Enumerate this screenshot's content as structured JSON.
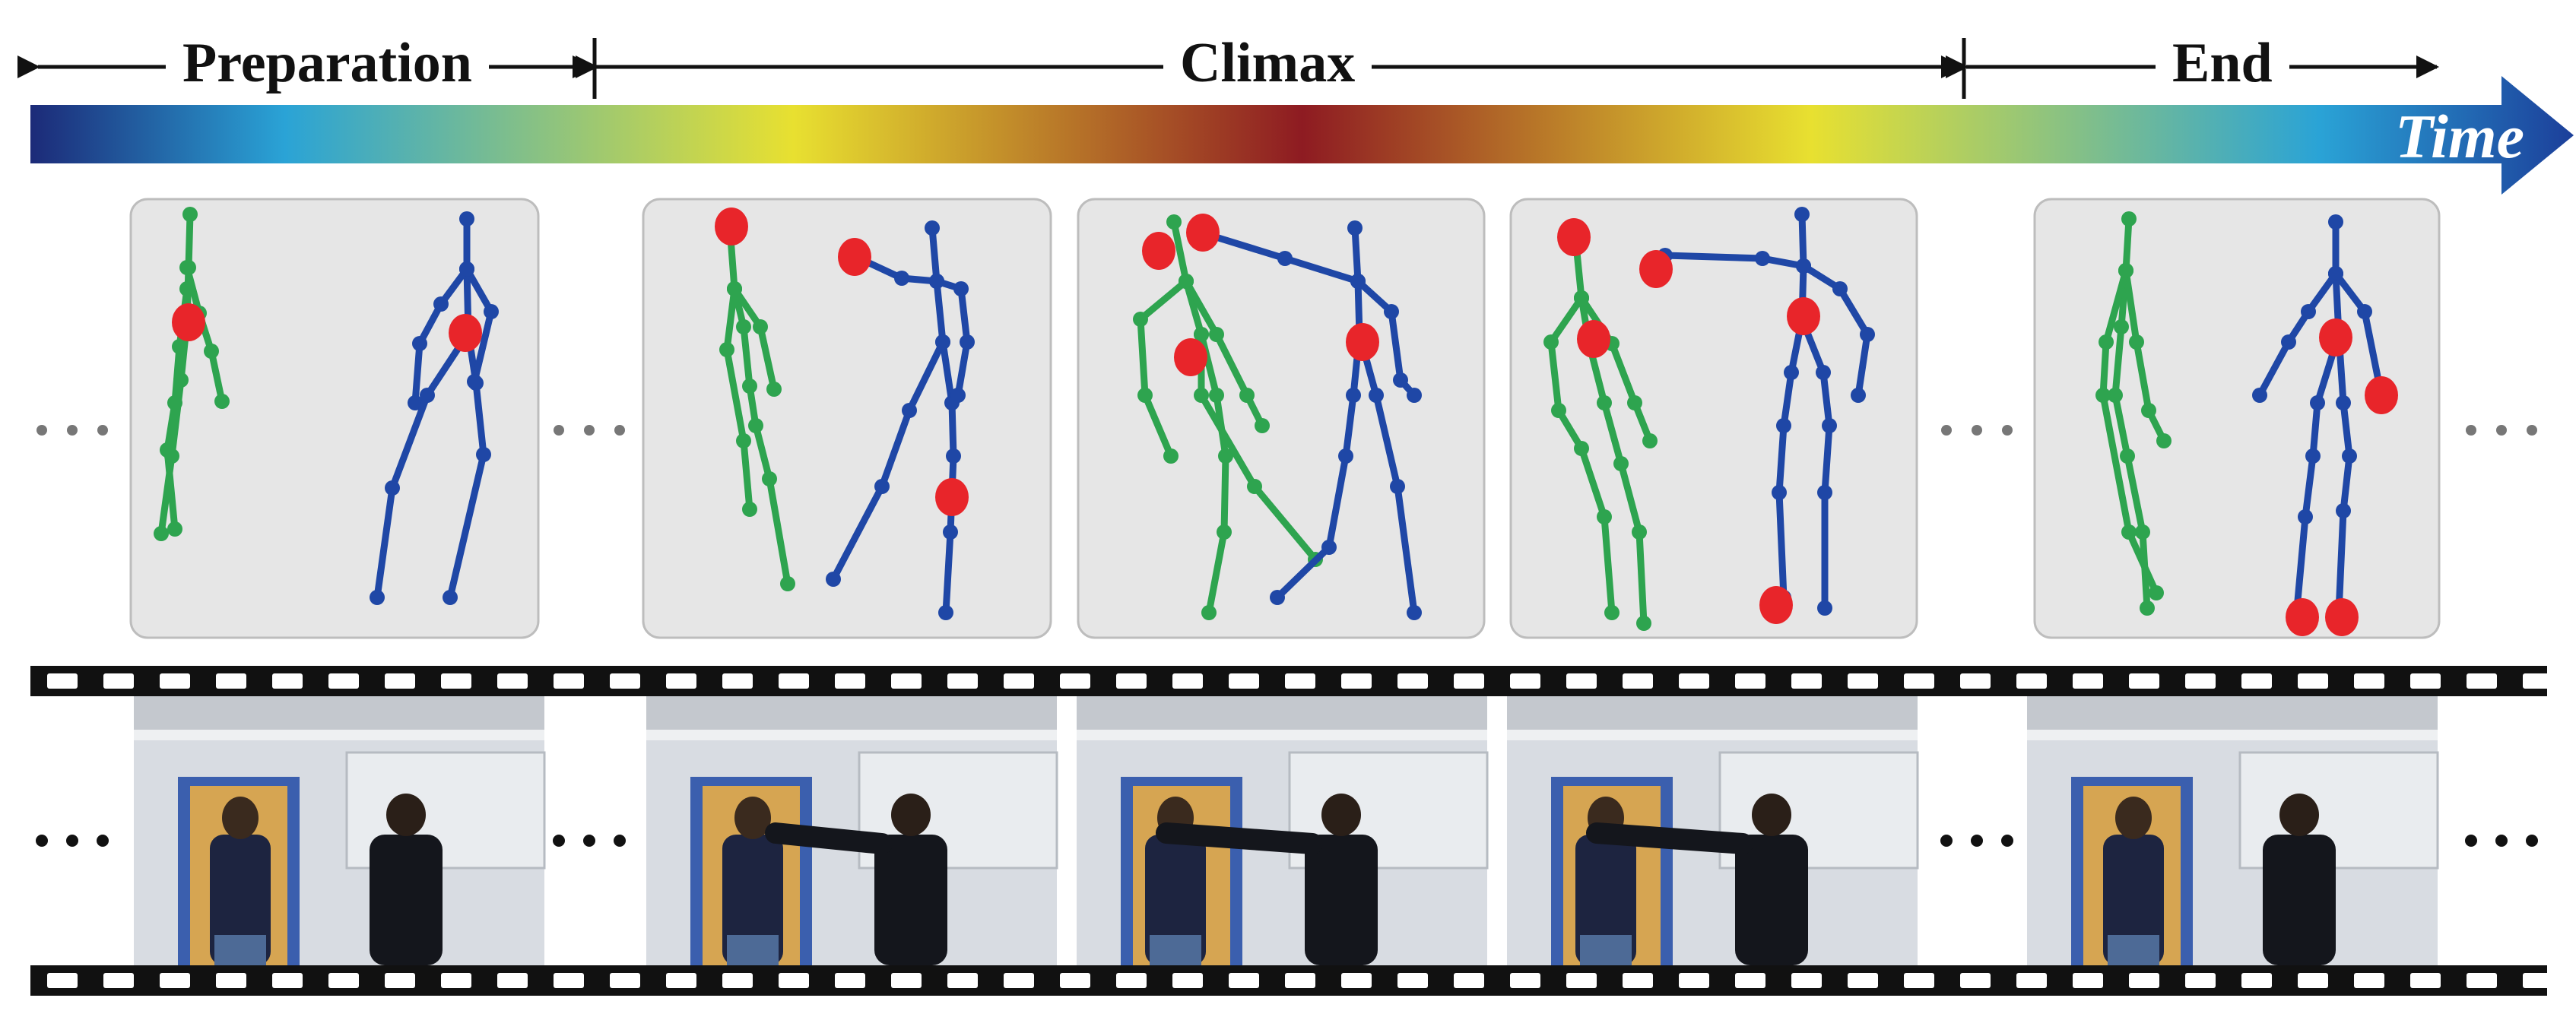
{
  "phases": {
    "preparation": "Preparation",
    "climax": "Climax",
    "end": "End"
  },
  "time_label": "Time",
  "colors": {
    "skeleton_left": "#2ea44f",
    "skeleton_right": "#1f47a6",
    "keypoint": "#e8252a",
    "panel_bg": "#e6e6e6",
    "film": "#111111",
    "timeline_gradient": [
      "#1c2a78",
      "#2aa3d6",
      "#e8e030",
      "#8e1b22",
      "#e8e030",
      "#2aa3d6",
      "#1c3f9a"
    ]
  },
  "frames": [
    {
      "phase": "preparation",
      "pose": "standing-apart"
    },
    {
      "phase": "climax",
      "pose": "punch-start"
    },
    {
      "phase": "climax",
      "pose": "punch-impact"
    },
    {
      "phase": "climax",
      "pose": "punch-recoil"
    },
    {
      "phase": "end",
      "pose": "standing-apart"
    }
  ],
  "ellipsis": "• • •"
}
